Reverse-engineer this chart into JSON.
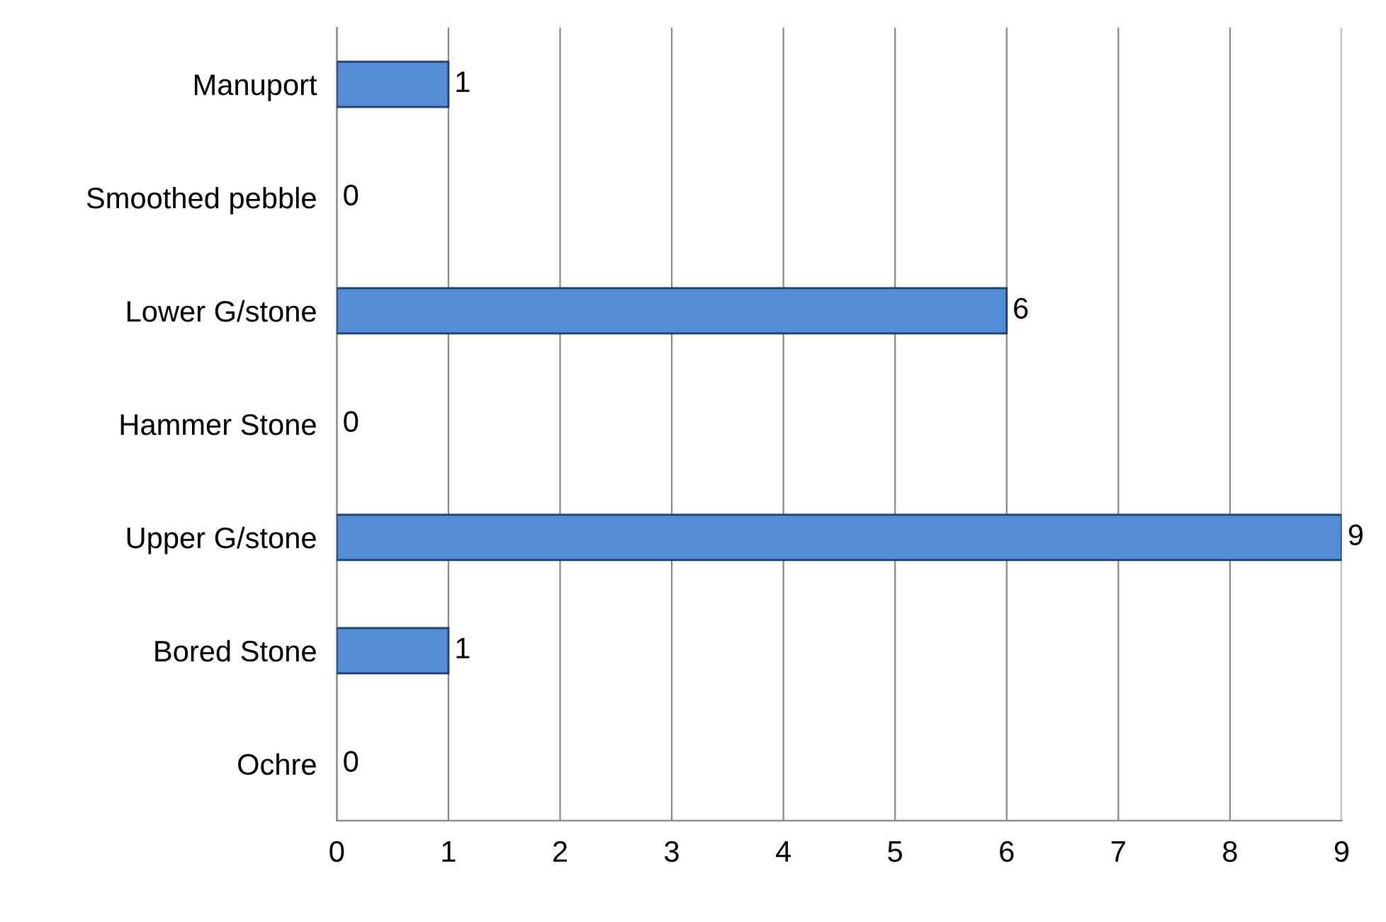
{
  "chart_data": {
    "type": "bar",
    "orientation": "horizontal",
    "categories": [
      "Manuport",
      "Smoothed pebble",
      "Lower G/stone",
      "Hammer Stone",
      "Upper G/stone",
      "Bored Stone",
      "Ochre"
    ],
    "values": [
      1,
      0,
      6,
      0,
      9,
      1,
      0
    ],
    "color": "#548dd4",
    "xlim": [
      0,
      9
    ],
    "xticks": [
      0,
      1,
      2,
      3,
      4,
      5,
      6,
      7,
      8,
      9
    ],
    "grid": "x",
    "data_labels": true
  }
}
